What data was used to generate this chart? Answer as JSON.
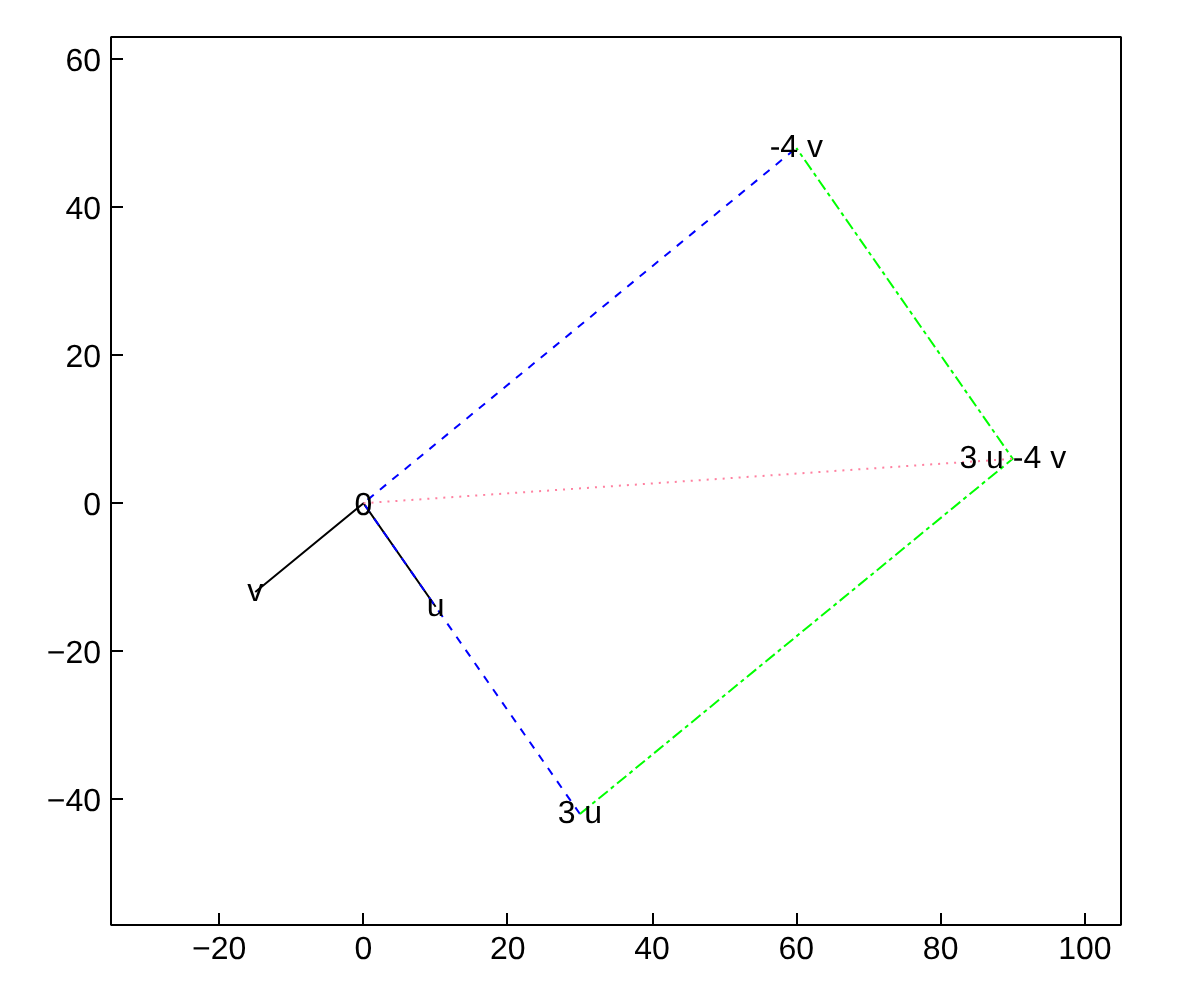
{
  "chart_data": {
    "type": "line",
    "xlim": [
      -35,
      105
    ],
    "ylim": [
      -57,
      63
    ],
    "xticks": [
      -20,
      0,
      20,
      40,
      60,
      80,
      100
    ],
    "yticks": [
      -40,
      -20,
      0,
      20,
      40,
      60
    ],
    "grid": false,
    "marker": "none",
    "series": [
      {
        "color": "#000000",
        "line_style": "solid",
        "x": [
          -15,
          0,
          10
        ],
        "values": [
          -12,
          0,
          -14
        ]
      },
      {
        "color": "#0000ff",
        "line_style": "dashed",
        "x": [
          30,
          0,
          60
        ],
        "values": [
          -42,
          0,
          48
        ]
      },
      {
        "color": "#00ff00",
        "line_style": "dashdot",
        "x": [
          30,
          90,
          60
        ],
        "values": [
          -42,
          6,
          48
        ]
      },
      {
        "color": "#ff80a0",
        "line_style": "dotted",
        "x": [
          0,
          90
        ],
        "values": [
          0,
          6
        ]
      }
    ],
    "annotations": [
      {
        "text": "0",
        "x": 0,
        "y": 0
      },
      {
        "text": "v",
        "x": -15,
        "y": -12
      },
      {
        "text": "u",
        "x": 10,
        "y": -14
      },
      {
        "text": "-4 v",
        "x": 60,
        "y": 48
      },
      {
        "text": "3 u",
        "x": 30,
        "y": -42
      },
      {
        "text": "3 u -4 v",
        "x": 90,
        "y": 6
      }
    ]
  }
}
